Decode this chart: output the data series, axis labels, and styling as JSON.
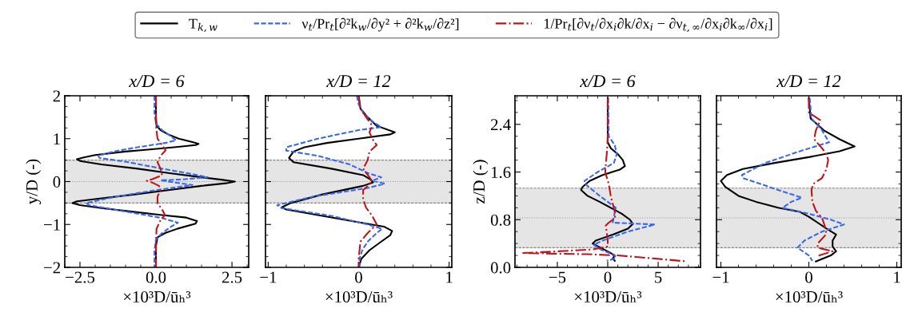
{
  "chart_data": [
    {
      "type": "line",
      "title": "x/D = 6",
      "xlabel": "×10³D/ūₕ³",
      "ylabel": "y/D (-)",
      "legend": "top",
      "grid": false,
      "xlim": [
        -3.0,
        3.05
      ],
      "xticks": [
        {
          "value": -2.5,
          "label": "−2.5"
        },
        {
          "value": 0,
          "label": "0.0"
        },
        {
          "value": 2.5,
          "label": "2.5"
        }
      ],
      "ylim": [
        -2,
        2
      ],
      "yticks": [
        {
          "value": -2,
          "label": "−2"
        },
        {
          "value": -1,
          "label": "−1"
        },
        0,
        1,
        2
      ],
      "bands": [
        {
          "axis": "y",
          "from": -0.5,
          "to": 0.5,
          "color": "#e5e5e5"
        }
      ],
      "ref_lines": [
        {
          "axis": "y",
          "value": 0,
          "color": "#999999",
          "line_style": "dotted"
        },
        {
          "axis": "y",
          "value": -0.5,
          "color": "#888888",
          "line_style": "dashed"
        },
        {
          "axis": "y",
          "value": 0.5,
          "color": "#888888",
          "line_style": "dashed"
        }
      ],
      "series": [
        {
          "name": "T$_{k,w}$",
          "color": "#000000",
          "line_style": "solid",
          "x": [
            0,
            0,
            0.02,
            0.15,
            0.4,
            0.75,
            1.2,
            1.4,
            1.3,
            0.6,
            -0.2,
            -1.0,
            -2.0,
            -2.4,
            -2.6,
            -2.5,
            -1.8,
            -0.6,
            0.4,
            1.5,
            2.2,
            2.6,
            2.3,
            1.5,
            0.4,
            -0.7,
            -1.9,
            -2.6,
            -2.75,
            -2.5,
            -1.8,
            -0.8,
            0.2,
            1.0,
            1.35,
            1.3,
            0.7,
            0.3,
            0.05,
            0,
            0
          ],
          "values": [
            2.0,
            1.5,
            1.3,
            1.2,
            1.1,
            1.0,
            0.92,
            0.88,
            0.85,
            0.8,
            0.75,
            0.7,
            0.62,
            0.56,
            0.52,
            0.48,
            0.4,
            0.3,
            0.2,
            0.1,
            0.04,
            0.0,
            -0.04,
            -0.1,
            -0.2,
            -0.3,
            -0.4,
            -0.46,
            -0.5,
            -0.55,
            -0.62,
            -0.7,
            -0.78,
            -0.84,
            -0.92,
            -0.98,
            -1.1,
            -1.2,
            -1.3,
            -1.5,
            -2.0
          ]
        },
        {
          "name": "ν$_{t}$/Pr$_{t}$[∂²k$_{w}$/∂y² + ∂²k$_{w}$/∂z²]",
          "color": "#3b68e8",
          "line_style": "dashed",
          "x": [
            -0.05,
            -0.05,
            0.0,
            0.2,
            0.5,
            0.66,
            0.3,
            -0.6,
            -1.4,
            -1.9,
            -1.85,
            -0.9,
            0.2,
            1.0,
            1.7,
            0.9,
            0.15,
            0.6,
            1.2,
            0.0,
            -1.3,
            -2.3,
            -2.2,
            -1.0,
            0.2,
            0.72,
            0.5,
            0.2,
            0.0,
            -0.05,
            -0.05
          ],
          "values": [
            2.0,
            1.6,
            1.35,
            1.2,
            1.05,
            0.96,
            0.9,
            0.8,
            0.7,
            0.6,
            0.55,
            0.45,
            0.3,
            0.2,
            0.1,
            0.05,
            0.03,
            -0.02,
            -0.08,
            -0.2,
            -0.35,
            -0.5,
            -0.55,
            -0.7,
            -0.85,
            -0.96,
            -1.05,
            -1.2,
            -1.35,
            -1.6,
            -2.0
          ]
        },
        {
          "name": "1/Pr$_{t}$[∂ν$_{t}$/∂x$_{i}$∂k/∂x$_{i}$ − ∂ν$_{t,∞}$/∂x$_{i}$∂k$_{∞}$/∂x$_{i}$]",
          "color": "#c0141c",
          "line_style": "dashdot",
          "x": [
            0,
            0,
            0.05,
            0.2,
            0.32,
            0.15,
            0.05,
            0.15,
            0.2,
            -0.1,
            -0.3,
            -0.1,
            0.1,
            0.15,
            0.05,
            0.05,
            0.2,
            0.3,
            0.15,
            0.02,
            0,
            0
          ],
          "values": [
            2.0,
            1.3,
            1.0,
            0.85,
            0.73,
            0.6,
            0.45,
            0.3,
            0.15,
            0.06,
            0.02,
            -0.03,
            -0.1,
            -0.2,
            -0.35,
            -0.5,
            -0.65,
            -0.78,
            -0.9,
            -1.1,
            -1.4,
            -2.0
          ]
        }
      ]
    },
    {
      "type": "line",
      "title": "x/D = 12",
      "xlabel": "×10³D/ūₕ³",
      "grid": false,
      "tick_labels": "x",
      "xlim": [
        -1.03,
        1.03
      ],
      "xticks": [
        {
          "value": -1,
          "label": "−1"
        },
        0,
        1
      ],
      "ylim": [
        -2,
        2
      ],
      "yticks": [
        -2,
        -1,
        0,
        1,
        2
      ],
      "bands": [
        {
          "axis": "y",
          "from": -0.5,
          "to": 0.5,
          "color": "#e5e5e5"
        }
      ],
      "ref_lines": [
        {
          "axis": "y",
          "value": 0,
          "color": "#999999",
          "line_style": "dotted"
        },
        {
          "axis": "y",
          "value": -0.5,
          "color": "#888888",
          "line_style": "dashed"
        },
        {
          "axis": "y",
          "value": 0.5,
          "color": "#888888",
          "line_style": "dashed"
        }
      ],
      "series": [
        {
          "color": "#000000",
          "line_style": "solid",
          "x": [
            0,
            0.02,
            0.1,
            0.2,
            0.4,
            0.35,
            0.0,
            -0.35,
            -0.6,
            -0.72,
            -0.77,
            -0.72,
            -0.3,
            0.05,
            0.13,
            0.16,
            0.05,
            -0.4,
            -0.75,
            -0.85,
            -0.8,
            -0.4,
            0.0,
            0.28,
            0.37,
            0.35,
            0.25,
            0.12,
            0.03,
            0
          ],
          "values": [
            2.0,
            1.7,
            1.5,
            1.3,
            1.15,
            1.1,
            1.0,
            0.9,
            0.8,
            0.7,
            0.55,
            0.45,
            0.3,
            0.15,
            0.05,
            -0.02,
            -0.1,
            -0.3,
            -0.5,
            -0.6,
            -0.65,
            -0.8,
            -0.95,
            -1.05,
            -1.15,
            -1.25,
            -1.4,
            -1.6,
            -1.8,
            -2.0
          ]
        },
        {
          "color": "#3b68e8",
          "line_style": "dashed",
          "x": [
            -0.02,
            0.0,
            0.05,
            0.15,
            0.25,
            0.0,
            -0.45,
            -0.8,
            -0.8,
            -0.45,
            -0.1,
            0.1,
            0.25,
            0.15,
            0.29,
            0.1,
            -0.5,
            -0.9,
            -0.85,
            -0.3,
            0.1,
            0.26,
            0.2,
            0.1,
            0.04,
            0.01,
            0.01
          ],
          "values": [
            2.0,
            1.8,
            1.6,
            1.4,
            1.27,
            1.2,
            1.0,
            0.8,
            0.72,
            0.6,
            0.4,
            0.2,
            0.1,
            0.02,
            -0.05,
            -0.15,
            -0.35,
            -0.55,
            -0.62,
            -0.8,
            -1.0,
            -1.1,
            -1.2,
            -1.4,
            -1.6,
            -1.8,
            -2.0
          ]
        },
        {
          "color": "#c0141c",
          "line_style": "dashdot",
          "x": [
            0,
            0.02,
            0.1,
            0.15,
            0.12,
            0.15,
            0.2,
            0.12,
            0.1,
            0.05,
            0.12,
            0.15,
            0.1,
            0.05,
            0.05,
            0.08,
            0.15,
            0.2,
            0.1,
            0.02,
            0,
            0
          ],
          "values": [
            2.0,
            1.7,
            1.45,
            1.3,
            1.15,
            1.0,
            0.85,
            0.7,
            0.5,
            0.3,
            0.1,
            0.0,
            -0.1,
            -0.2,
            -0.4,
            -0.6,
            -0.8,
            -1.0,
            -1.2,
            -1.4,
            -1.8,
            -2.0
          ]
        }
      ]
    },
    {
      "type": "line",
      "title": "x/D = 6",
      "xlabel": "×10³D/ūₕ³",
      "ylabel": "z/D (-)",
      "grid": false,
      "xlim": [
        -9.2,
        9.2
      ],
      "xticks": [
        {
          "value": -5,
          "label": "−5"
        },
        0,
        5
      ],
      "ylim": [
        0,
        2.88
      ],
      "yticks": [
        {
          "value": 0,
          "label": "0.0"
        },
        0.8,
        1.6,
        2.4
      ],
      "bands": [
        {
          "axis": "y",
          "from": 0.33,
          "to": 1.33,
          "color": "#e5e5e5"
        }
      ],
      "ref_lines": [
        {
          "axis": "y",
          "value": 0.83,
          "color": "#999999",
          "line_style": "dotted"
        },
        {
          "axis": "y",
          "value": 0.33,
          "color": "#888888",
          "line_style": "dashed"
        },
        {
          "axis": "y",
          "value": 1.33,
          "color": "#888888",
          "line_style": "dashed"
        }
      ],
      "series": [
        {
          "color": "#000000",
          "line_style": "solid",
          "x": [
            0,
            0,
            0.3,
            1.0,
            1.5,
            1.7,
            1.2,
            -0.5,
            -1.8,
            -2.5,
            -2.65,
            -2.0,
            -0.8,
            0.3,
            1.4,
            2.2,
            2.5,
            2.0,
            0.5,
            -1.2,
            -1.5,
            -0.6,
            0.2,
            0.7,
            0.5,
            0.7
          ],
          "values": [
            2.84,
            2.1,
            2.0,
            1.9,
            1.8,
            1.7,
            1.64,
            1.55,
            1.45,
            1.35,
            1.3,
            1.2,
            1.1,
            1.0,
            0.9,
            0.8,
            0.73,
            0.65,
            0.55,
            0.45,
            0.4,
            0.32,
            0.25,
            0.2,
            0.15,
            0.11
          ]
        },
        {
          "color": "#3b68e8",
          "line_style": "dashed",
          "x": [
            0.05,
            0.1,
            0.7,
            0.9,
            0.6,
            -1.0,
            -2.3,
            -2.1,
            -0.8,
            0.8,
            0.6,
            0.5,
            4.7,
            2.0,
            -0.5,
            -1.4,
            -0.7,
            0.7,
            0.8,
            -0.1
          ],
          "values": [
            2.84,
            2.2,
            2.05,
            1.9,
            1.75,
            1.6,
            1.45,
            1.38,
            1.2,
            1.0,
            0.85,
            0.75,
            0.72,
            0.6,
            0.45,
            0.38,
            0.3,
            0.2,
            0.15,
            0.11
          ]
        },
        {
          "color": "#c0141c",
          "line_style": "dashdot",
          "x": [
            0,
            0,
            -0.05,
            -0.15,
            -0.25,
            0.1,
            0.3,
            0.6,
            0.75,
            0.7,
            0.1,
            -0.2,
            -0.1,
            0.0,
            0.0,
            -1.5,
            -6.0,
            -8.5,
            -2.0,
            1.0,
            4.5,
            7.8
          ],
          "values": [
            2.84,
            2.2,
            2.0,
            1.8,
            1.6,
            1.4,
            1.2,
            1.0,
            0.9,
            0.82,
            0.75,
            0.7,
            0.6,
            0.45,
            0.35,
            0.3,
            0.26,
            0.24,
            0.22,
            0.2,
            0.15,
            0.1
          ]
        }
      ]
    },
    {
      "type": "line",
      "title": "x/D = 12",
      "xlabel": "×10³D/ūₕ³",
      "grid": false,
      "tick_labels": "x",
      "xlim": [
        -1.05,
        1.05
      ],
      "xticks": [
        {
          "value": -1,
          "label": "−1"
        },
        0,
        1
      ],
      "ylim": [
        0,
        2.88
      ],
      "yticks": [
        0,
        0.8,
        1.6,
        2.4
      ],
      "bands": [
        {
          "axis": "y",
          "from": 0.33,
          "to": 1.33,
          "color": "#e5e5e5"
        }
      ],
      "ref_lines": [
        {
          "axis": "y",
          "value": 0.83,
          "color": "#999999",
          "line_style": "dotted"
        },
        {
          "axis": "y",
          "value": 0.33,
          "color": "#888888",
          "line_style": "dashed"
        },
        {
          "axis": "y",
          "value": 1.33,
          "color": "#888888",
          "line_style": "dashed"
        }
      ],
      "series": [
        {
          "color": "#000000",
          "line_style": "solid",
          "x": [
            0,
            0.02,
            0.17,
            0.35,
            0.52,
            0.35,
            0.0,
            -0.4,
            -0.75,
            -0.93,
            -1.0,
            -0.95,
            -0.8,
            -0.6,
            -0.35,
            -0.1,
            0.0,
            0.1,
            0.2,
            0.31,
            0.27,
            0.27,
            0.31,
            0.25,
            0.08
          ],
          "values": [
            2.84,
            2.5,
            2.3,
            2.15,
            2.03,
            1.95,
            1.85,
            1.75,
            1.65,
            1.55,
            1.45,
            1.35,
            1.2,
            1.1,
            1.0,
            0.93,
            0.85,
            0.75,
            0.65,
            0.55,
            0.45,
            0.35,
            0.27,
            0.2,
            0.1
          ]
        },
        {
          "color": "#3b68e8",
          "line_style": "dashed",
          "x": [
            0.01,
            0.03,
            0.15,
            0.23,
            -0.1,
            -0.5,
            -0.76,
            -0.75,
            -0.35,
            -0.08,
            -0.2,
            -0.3,
            0.0,
            0.25,
            0.4,
            0.15,
            -0.05,
            -0.13,
            0.0,
            0.04
          ],
          "values": [
            2.84,
            2.5,
            2.3,
            2.1,
            1.95,
            1.75,
            1.55,
            1.5,
            1.3,
            1.17,
            1.1,
            1.0,
            0.9,
            0.8,
            0.72,
            0.6,
            0.45,
            0.33,
            0.2,
            0.11
          ]
        },
        {
          "color": "#c0141c",
          "line_style": "dashdot",
          "x": [
            0,
            0.0,
            0.13,
            0.08,
            0.06,
            0.15,
            0.2,
            0.22,
            0.2,
            0.15,
            0.05,
            0.03,
            0.04,
            0.08,
            0.15,
            0.18,
            0.2,
            0.1,
            0.1,
            0.27,
            0.12,
            0.1
          ],
          "values": [
            2.84,
            2.6,
            2.47,
            2.3,
            2.15,
            2.0,
            1.9,
            1.8,
            1.65,
            1.5,
            1.4,
            1.3,
            1.1,
            0.95,
            0.83,
            0.7,
            0.56,
            0.4,
            0.33,
            0.27,
            0.2,
            0.16
          ]
        }
      ]
    }
  ]
}
